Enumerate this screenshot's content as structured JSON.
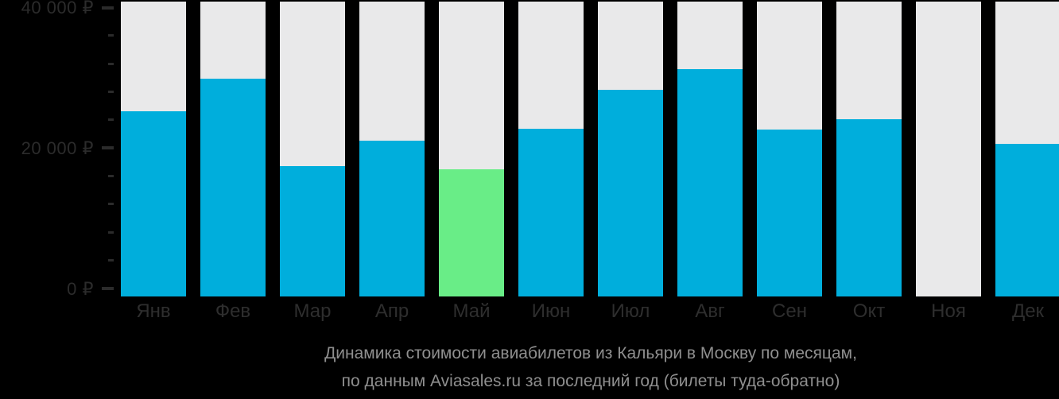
{
  "chart_data": {
    "type": "bar",
    "title_line1": "Динамика стоимости авиабилетов из Кальяри в Москву по месяцам,",
    "title_line2": "по данным Aviasales.ru за последний год (билеты туда-обратно)",
    "categories": [
      "Янв",
      "Фев",
      "Мар",
      "Апр",
      "Май",
      "Июн",
      "Июл",
      "Авг",
      "Сен",
      "Окт",
      "Ноя",
      "Дек"
    ],
    "values": [
      25200,
      29900,
      17400,
      21100,
      17000,
      22700,
      28300,
      31200,
      22600,
      24100,
      null,
      20600
    ],
    "highlight_index": 4,
    "ylim": [
      0,
      40000
    ],
    "y_ticks": {
      "major": [
        {
          "value": 0,
          "label": "0 ₽"
        },
        {
          "value": 20000,
          "label": "20 000 ₽"
        },
        {
          "value": 40000,
          "label": "40 000 ₽"
        }
      ],
      "minor_step": 4000
    },
    "legend": "none",
    "grid": "off",
    "colors": {
      "bar": "#00AEDC",
      "highlight": "#69ED87",
      "track": "#E9E9EA",
      "background": "#000000",
      "axis_text": "#2B2B2B",
      "month_text": "#2E2E2E",
      "title_text": "#8F8F8F"
    }
  }
}
